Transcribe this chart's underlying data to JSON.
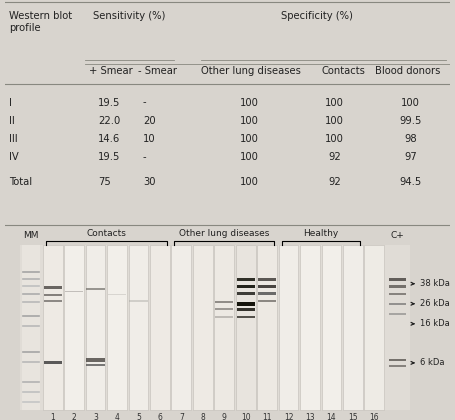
{
  "table": {
    "rows": [
      [
        "I",
        "19.5",
        "-",
        "100",
        "100",
        "100"
      ],
      [
        "II",
        "22.0",
        "20",
        "100",
        "100",
        "99.5"
      ],
      [
        "III",
        "14.6",
        "10",
        "100",
        "100",
        "98"
      ],
      [
        "IV",
        "19.5",
        "-",
        "100",
        "92",
        "97"
      ],
      [
        "Total",
        "75",
        "30",
        "100",
        "92",
        "94.5"
      ]
    ]
  },
  "blot": {
    "bg_color": "#d8d4ce",
    "lane_bg": "#f0eeeb",
    "band_color": "#3a3530"
  },
  "table_bg": "#e8e4df",
  "fig_bg": "#d8d4ce"
}
